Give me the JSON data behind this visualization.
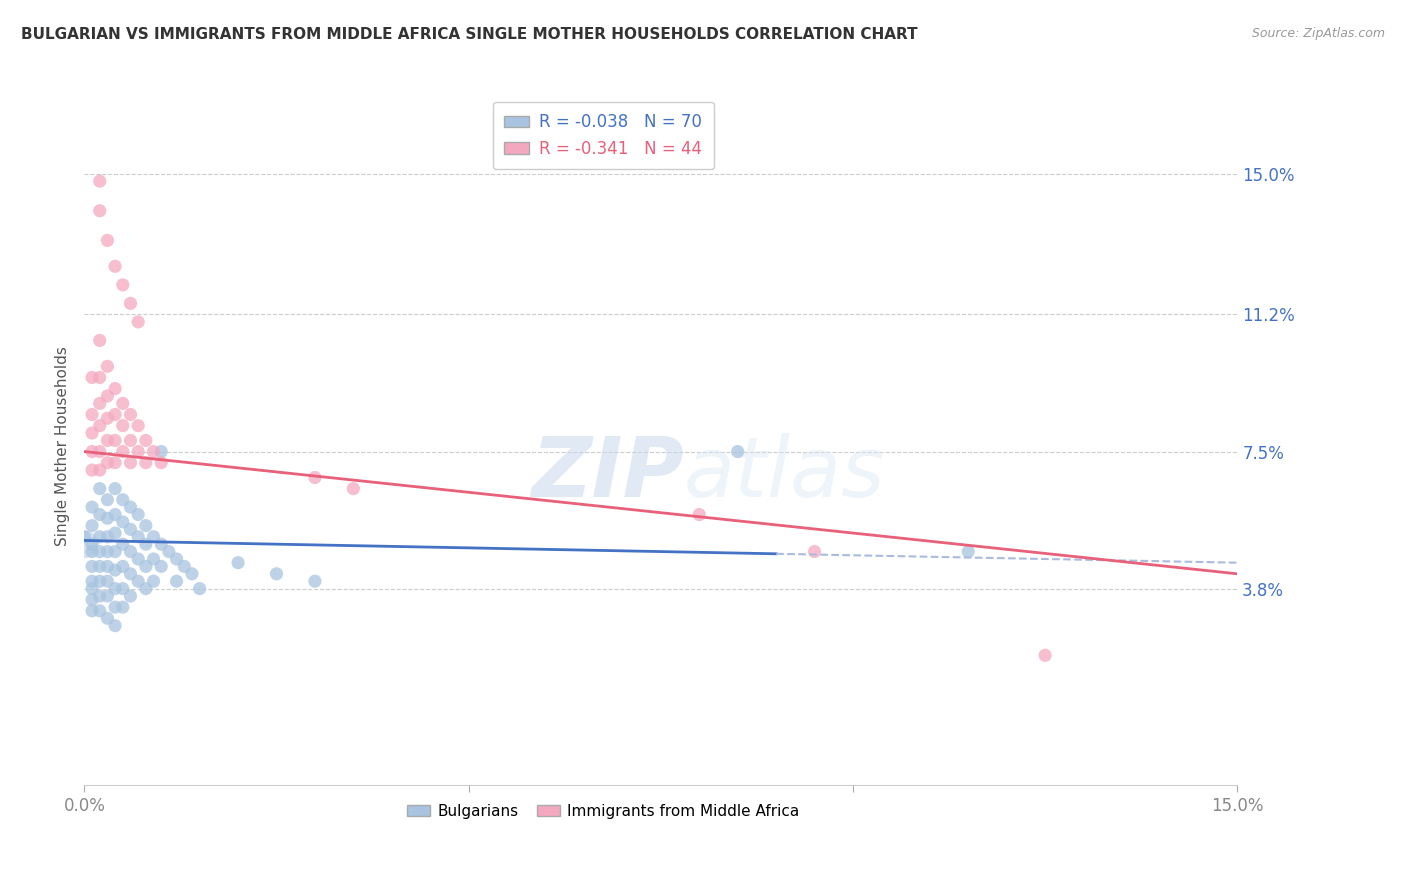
{
  "title": "BULGARIAN VS IMMIGRANTS FROM MIDDLE AFRICA SINGLE MOTHER HOUSEHOLDS CORRELATION CHART",
  "source": "Source: ZipAtlas.com",
  "ylabel": "Single Mother Households",
  "xlim": [
    0.0,
    0.15
  ],
  "ylim": [
    -0.015,
    0.168
  ],
  "yticks": [
    0.038,
    0.075,
    0.112,
    0.15
  ],
  "ytick_labels": [
    "3.8%",
    "7.5%",
    "11.2%",
    "15.0%"
  ],
  "xticks": [
    0.0,
    0.05,
    0.1,
    0.15
  ],
  "xtick_labels": [
    "0.0%",
    "",
    "",
    "15.0%"
  ],
  "legend_r1": "-0.038",
  "legend_n1": "70",
  "legend_r2": "-0.341",
  "legend_n2": "44",
  "color_blue": "#a8c4e0",
  "color_pink": "#f4a8c0",
  "line_blue": "#4472c4",
  "line_pink": "#e8607a",
  "watermark_zip": "ZIP",
  "watermark_atlas": "atlas",
  "background_color": "#ffffff",
  "blue_scatter": [
    [
      0.0,
      0.052
    ],
    [
      0.001,
      0.06
    ],
    [
      0.001,
      0.055
    ],
    [
      0.001,
      0.05
    ],
    [
      0.001,
      0.048
    ],
    [
      0.001,
      0.044
    ],
    [
      0.001,
      0.04
    ],
    [
      0.001,
      0.038
    ],
    [
      0.001,
      0.035
    ],
    [
      0.001,
      0.032
    ],
    [
      0.002,
      0.065
    ],
    [
      0.002,
      0.058
    ],
    [
      0.002,
      0.052
    ],
    [
      0.002,
      0.048
    ],
    [
      0.002,
      0.044
    ],
    [
      0.002,
      0.04
    ],
    [
      0.002,
      0.036
    ],
    [
      0.002,
      0.032
    ],
    [
      0.003,
      0.062
    ],
    [
      0.003,
      0.057
    ],
    [
      0.003,
      0.052
    ],
    [
      0.003,
      0.048
    ],
    [
      0.003,
      0.044
    ],
    [
      0.003,
      0.04
    ],
    [
      0.003,
      0.036
    ],
    [
      0.003,
      0.03
    ],
    [
      0.004,
      0.065
    ],
    [
      0.004,
      0.058
    ],
    [
      0.004,
      0.053
    ],
    [
      0.004,
      0.048
    ],
    [
      0.004,
      0.043
    ],
    [
      0.004,
      0.038
    ],
    [
      0.004,
      0.033
    ],
    [
      0.004,
      0.028
    ],
    [
      0.005,
      0.062
    ],
    [
      0.005,
      0.056
    ],
    [
      0.005,
      0.05
    ],
    [
      0.005,
      0.044
    ],
    [
      0.005,
      0.038
    ],
    [
      0.005,
      0.033
    ],
    [
      0.006,
      0.06
    ],
    [
      0.006,
      0.054
    ],
    [
      0.006,
      0.048
    ],
    [
      0.006,
      0.042
    ],
    [
      0.006,
      0.036
    ],
    [
      0.007,
      0.058
    ],
    [
      0.007,
      0.052
    ],
    [
      0.007,
      0.046
    ],
    [
      0.007,
      0.04
    ],
    [
      0.008,
      0.055
    ],
    [
      0.008,
      0.05
    ],
    [
      0.008,
      0.044
    ],
    [
      0.008,
      0.038
    ],
    [
      0.009,
      0.052
    ],
    [
      0.009,
      0.046
    ],
    [
      0.009,
      0.04
    ],
    [
      0.01,
      0.075
    ],
    [
      0.01,
      0.05
    ],
    [
      0.01,
      0.044
    ],
    [
      0.011,
      0.048
    ],
    [
      0.012,
      0.046
    ],
    [
      0.012,
      0.04
    ],
    [
      0.013,
      0.044
    ],
    [
      0.014,
      0.042
    ],
    [
      0.015,
      0.038
    ],
    [
      0.02,
      0.045
    ],
    [
      0.025,
      0.042
    ],
    [
      0.03,
      0.04
    ],
    [
      0.085,
      0.075
    ],
    [
      0.115,
      0.048
    ]
  ],
  "pink_scatter": [
    [
      0.001,
      0.095
    ],
    [
      0.001,
      0.085
    ],
    [
      0.001,
      0.08
    ],
    [
      0.001,
      0.075
    ],
    [
      0.001,
      0.07
    ],
    [
      0.002,
      0.105
    ],
    [
      0.002,
      0.095
    ],
    [
      0.002,
      0.088
    ],
    [
      0.002,
      0.082
    ],
    [
      0.002,
      0.075
    ],
    [
      0.002,
      0.07
    ],
    [
      0.003,
      0.098
    ],
    [
      0.003,
      0.09
    ],
    [
      0.003,
      0.084
    ],
    [
      0.003,
      0.078
    ],
    [
      0.003,
      0.072
    ],
    [
      0.004,
      0.092
    ],
    [
      0.004,
      0.085
    ],
    [
      0.004,
      0.078
    ],
    [
      0.004,
      0.072
    ],
    [
      0.005,
      0.088
    ],
    [
      0.005,
      0.082
    ],
    [
      0.005,
      0.075
    ],
    [
      0.006,
      0.085
    ],
    [
      0.006,
      0.078
    ],
    [
      0.006,
      0.072
    ],
    [
      0.007,
      0.082
    ],
    [
      0.007,
      0.075
    ],
    [
      0.008,
      0.078
    ],
    [
      0.008,
      0.072
    ],
    [
      0.009,
      0.075
    ],
    [
      0.01,
      0.072
    ],
    [
      0.002,
      0.14
    ],
    [
      0.003,
      0.132
    ],
    [
      0.004,
      0.125
    ],
    [
      0.005,
      0.12
    ],
    [
      0.006,
      0.115
    ],
    [
      0.007,
      0.11
    ],
    [
      0.03,
      0.068
    ],
    [
      0.035,
      0.065
    ],
    [
      0.08,
      0.058
    ],
    [
      0.095,
      0.048
    ],
    [
      0.125,
      0.02
    ],
    [
      0.002,
      0.148
    ]
  ],
  "blue_line_solid_end": 0.09,
  "blue_line_start_y": 0.051,
  "blue_line_end_y": 0.045,
  "pink_line_start_y": 0.075,
  "pink_line_end_y": 0.042
}
